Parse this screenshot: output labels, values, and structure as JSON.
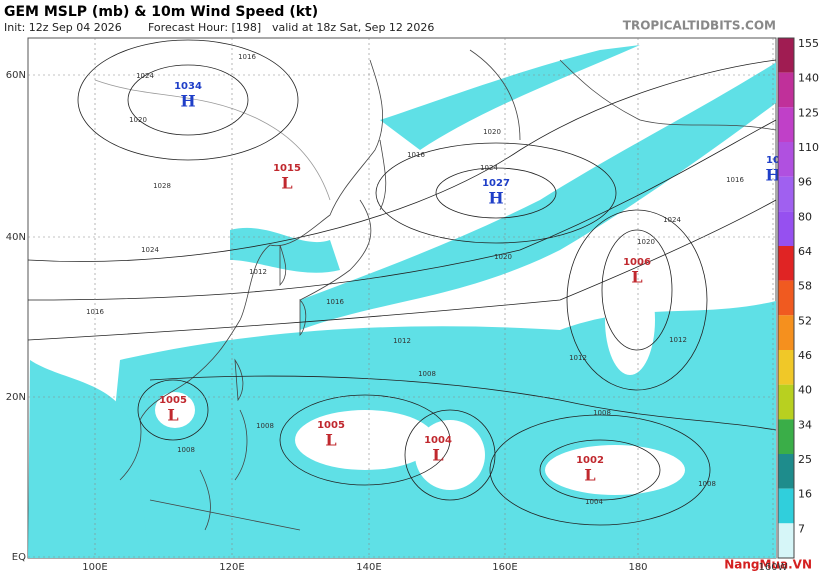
{
  "header": {
    "title": "GEM MSLP (mb) & 10m Wind Speed (kt)",
    "init": "Init: 12z Sep 04 2026",
    "forecast_hour": "Forecast Hour: [198]",
    "valid": "valid at 18z Sat, Sep 12 2026",
    "site": "TROPICALTIDBITS.COM"
  },
  "map": {
    "lat_labels": [
      "60N",
      "40N",
      "20N",
      "EQ"
    ],
    "lon_labels": [
      "100E",
      "120E",
      "140E",
      "160E",
      "180",
      "160W"
    ],
    "centers": [
      {
        "symbol": "H",
        "label": "1034"
      },
      {
        "symbol": "L",
        "label": "1015"
      },
      {
        "symbol": "H",
        "label": "1027"
      },
      {
        "symbol": "L",
        "label": "1006"
      },
      {
        "symbol": "L",
        "label": "1005"
      },
      {
        "symbol": "L",
        "label": "1005"
      },
      {
        "symbol": "L",
        "label": "1004"
      },
      {
        "symbol": "L",
        "label": "1002"
      },
      {
        "symbol": "H",
        "label": "10"
      }
    ],
    "isobar_labels": [
      "1024",
      "1016",
      "1020",
      "1028",
      "1024",
      "1016",
      "1012",
      "1020",
      "1016",
      "1024",
      "1020",
      "1016",
      "1012",
      "1008",
      "1008",
      "1008",
      "1012",
      "1008",
      "1004",
      "1008",
      "1020",
      "1024",
      "1016",
      "1012"
    ],
    "center_colors": {
      "H": "#1f3fc8",
      "L": "#c0282e"
    }
  },
  "colorbar": {
    "labels": [
      "155",
      "140",
      "125",
      "110",
      "96",
      "80",
      "64",
      "58",
      "52",
      "46",
      "40",
      "34",
      "25",
      "16",
      "7"
    ],
    "colors": [
      "#a01c52",
      "#c0309a",
      "#c040c8",
      "#b050e0",
      "#a060f0",
      "#9650f0",
      "#e02424",
      "#f05a20",
      "#f5901e",
      "#f0c828",
      "#b8d020",
      "#3aae48",
      "#1e8c8c",
      "#30cfdc",
      "#d6f6f8"
    ]
  },
  "watermark": "NangMua.VN"
}
